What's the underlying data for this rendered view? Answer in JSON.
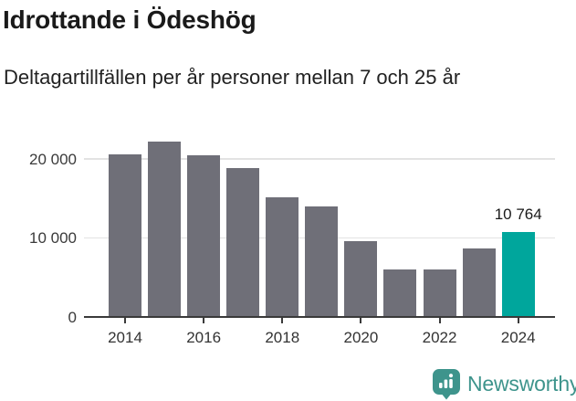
{
  "header": {
    "title": "Idrottande i Ödeshög",
    "subtitle": "Deltagartillfällen per år personer mellan 7 och 25 år"
  },
  "chart_data": {
    "type": "bar",
    "title": "Idrottande i Ödeshög",
    "subtitle": "Deltagartillfällen per år personer mellan 7 och 25 år",
    "categories": [
      2014,
      2015,
      2016,
      2017,
      2018,
      2019,
      2020,
      2021,
      2022,
      2023,
      2024
    ],
    "values": [
      20600,
      22200,
      20500,
      18900,
      15200,
      14000,
      9600,
      6000,
      6000,
      8650,
      10764
    ],
    "highlight_index": 10,
    "annotation": {
      "index": 10,
      "text": "10 764"
    },
    "bar_color": "#6f6f78",
    "highlight_color": "#00a69c",
    "y_ticks": [
      "0",
      "10 000",
      "20 000"
    ],
    "y_tick_values": [
      0,
      10000,
      20000
    ],
    "x_tick_labels": [
      "2014",
      "2016",
      "2018",
      "2020",
      "2022",
      "2024"
    ],
    "x_tick_years": [
      2014,
      2016,
      2018,
      2020,
      2022,
      2024
    ],
    "ylim": [
      0,
      24000
    ],
    "grid": true,
    "legend": "none",
    "xlabel": "",
    "ylabel": ""
  },
  "footer": {
    "brand": "Newsworthy",
    "brand_color": "#3e948c",
    "logo_icon": "speech-bubble-bar-chart-icon"
  }
}
